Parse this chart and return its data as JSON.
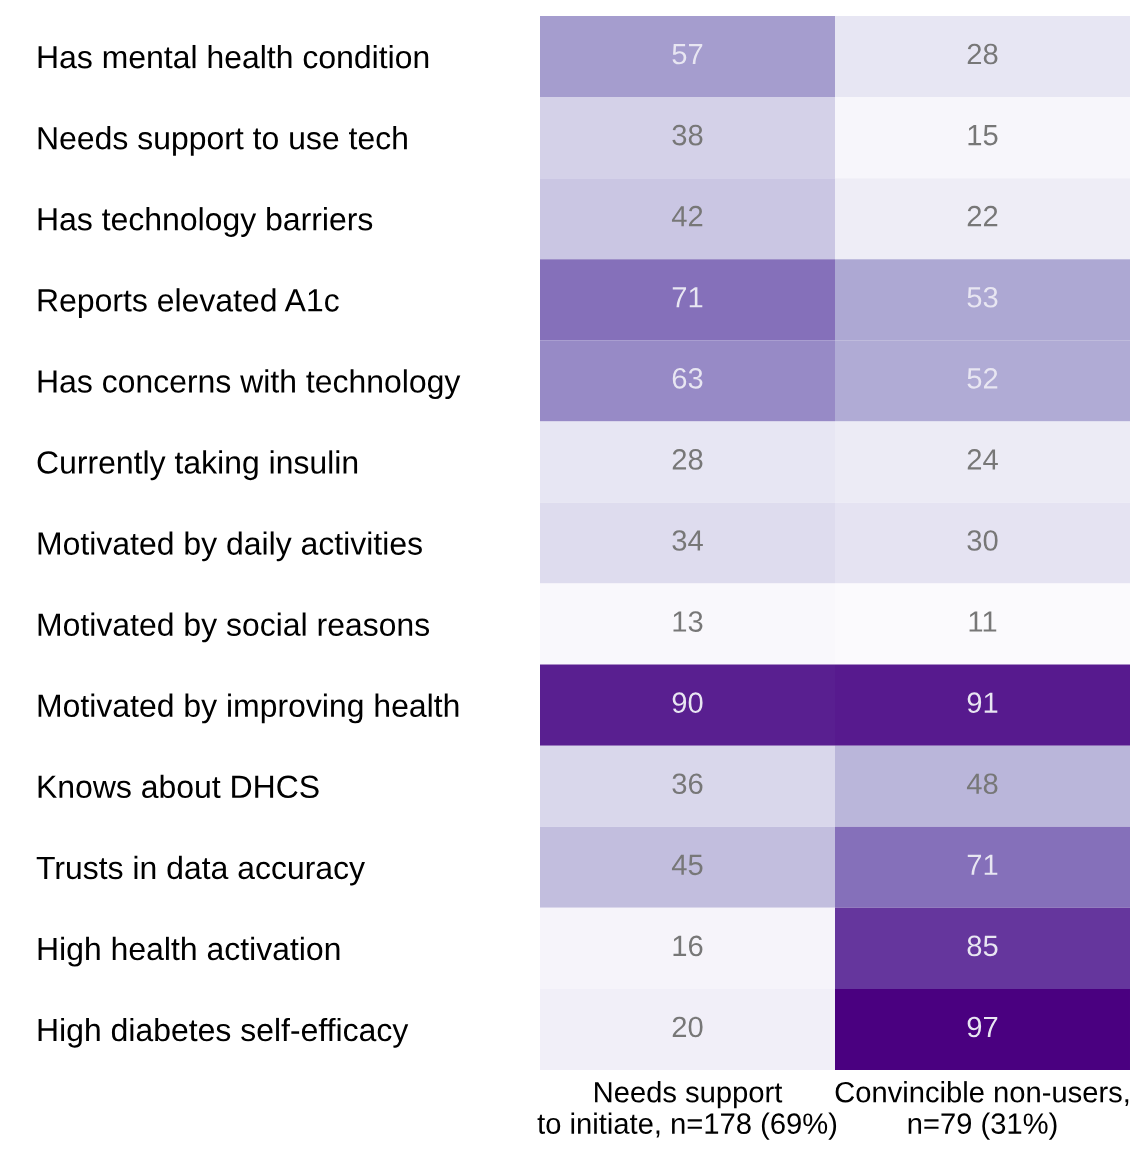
{
  "chart_data": {
    "type": "heatmap",
    "categories": [
      "Needs support\nto initiate, n=178 (69%)",
      "Convincible non-users,\nn=79 (31%)"
    ],
    "y_categories": [
      "Has mental health condition",
      "Needs support to use tech",
      "Has technology barriers",
      "Reports elevated A1c",
      "Has concerns with technology",
      "Currently taking insulin",
      "Motivated by daily activities",
      "Motivated by social reasons",
      "Motivated by improving health",
      "Knows about DHCS",
      "Trusts in data accuracy",
      "High health activation",
      "High diabetes self-efficacy"
    ],
    "cells": [
      [
        57,
        28
      ],
      [
        38,
        15
      ],
      [
        42,
        22
      ],
      [
        71,
        53
      ],
      [
        63,
        52
      ],
      [
        28,
        24
      ],
      [
        34,
        30
      ],
      [
        13,
        11
      ],
      [
        90,
        91
      ],
      [
        36,
        48
      ],
      [
        45,
        71
      ],
      [
        16,
        85
      ],
      [
        20,
        97
      ]
    ],
    "data_labels": true
  }
}
